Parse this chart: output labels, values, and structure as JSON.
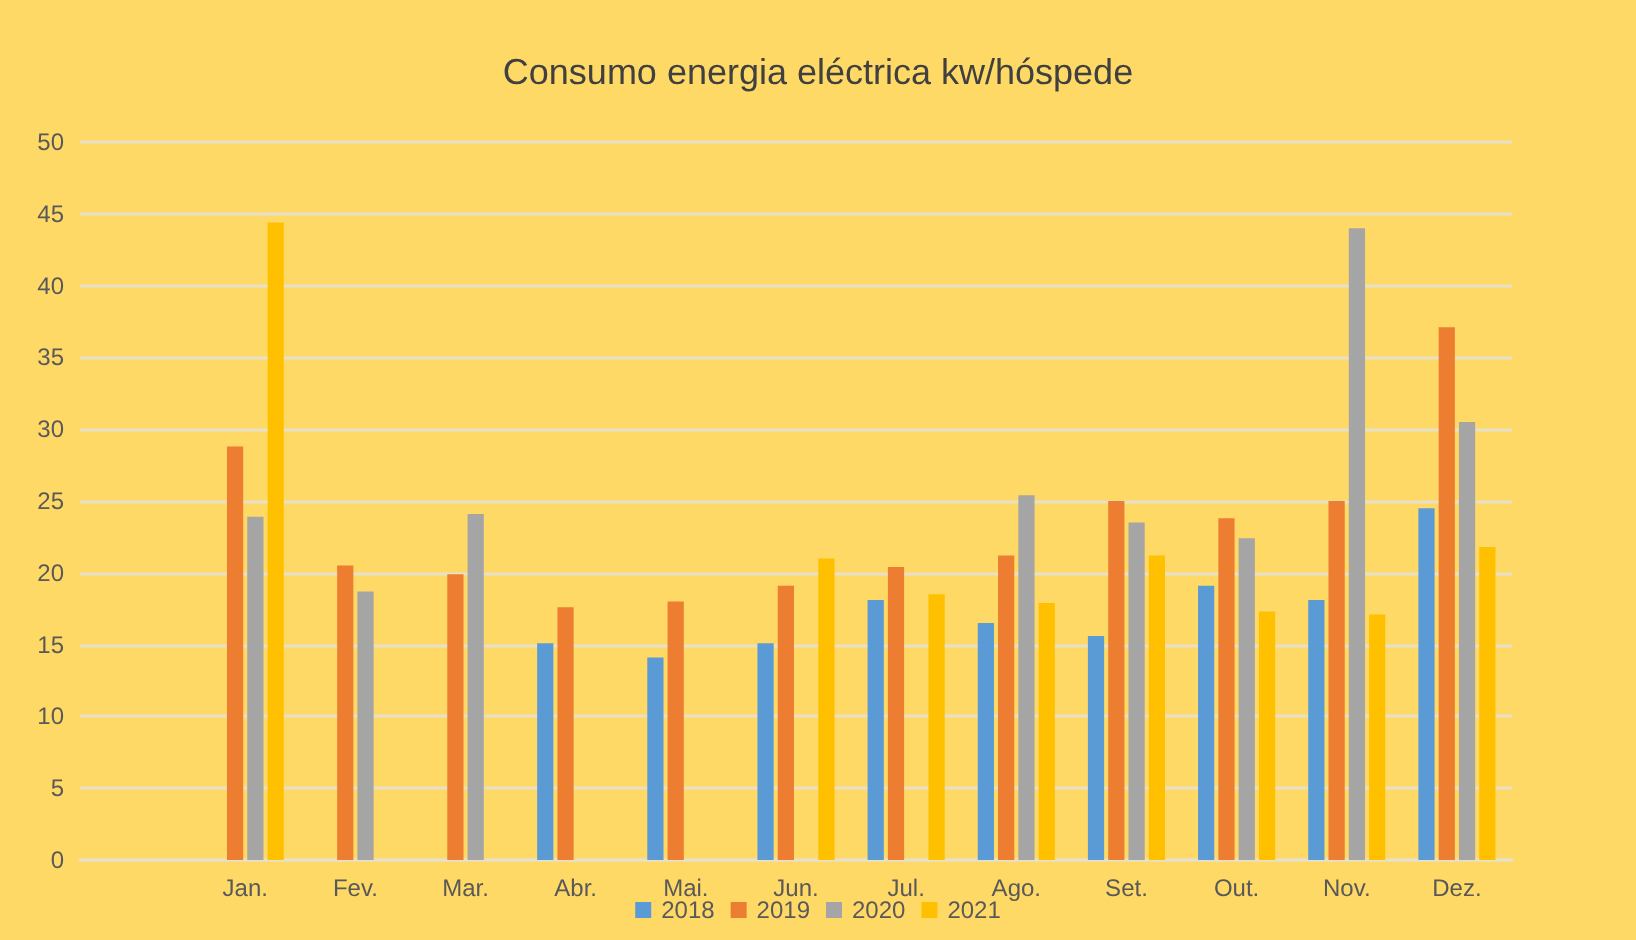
{
  "chart_data": {
    "type": "bar",
    "title": "Consumo energia eléctrica kw/hóspede",
    "categories": [
      null,
      "Jan.",
      "Fev.",
      "Mar.",
      "Abr.",
      "Mai.",
      "Jun.",
      "Jul.",
      "Ago.",
      "Set.",
      "Out.",
      "Nov.",
      "Dez."
    ],
    "series": [
      {
        "name": "2018",
        "color": "#5b9bd5",
        "values": [
          null,
          null,
          null,
          null,
          15.1,
          14.1,
          15.1,
          18.1,
          16.5,
          15.6,
          19.1,
          18.1,
          24.5
        ]
      },
      {
        "name": "2019",
        "color": "#ed7d31",
        "values": [
          null,
          28.8,
          20.5,
          19.9,
          17.6,
          18.0,
          19.1,
          20.4,
          21.2,
          25.0,
          23.8,
          25.0,
          37.1
        ]
      },
      {
        "name": "2020",
        "color": "#a5a5a5",
        "values": [
          null,
          23.9,
          18.7,
          24.1,
          null,
          null,
          null,
          null,
          25.4,
          23.5,
          22.4,
          44.0,
          30.5
        ]
      },
      {
        "name": "2021",
        "color": "#ffc000",
        "values": [
          null,
          44.4,
          null,
          null,
          null,
          null,
          21.0,
          18.5,
          17.9,
          21.2,
          17.3,
          17.1,
          21.8
        ]
      }
    ],
    "ylim": [
      0,
      50
    ],
    "yticks": [
      0,
      5,
      10,
      15,
      20,
      25,
      30,
      35,
      40,
      45,
      50
    ],
    "grid": "y",
    "legend": "bottom"
  }
}
